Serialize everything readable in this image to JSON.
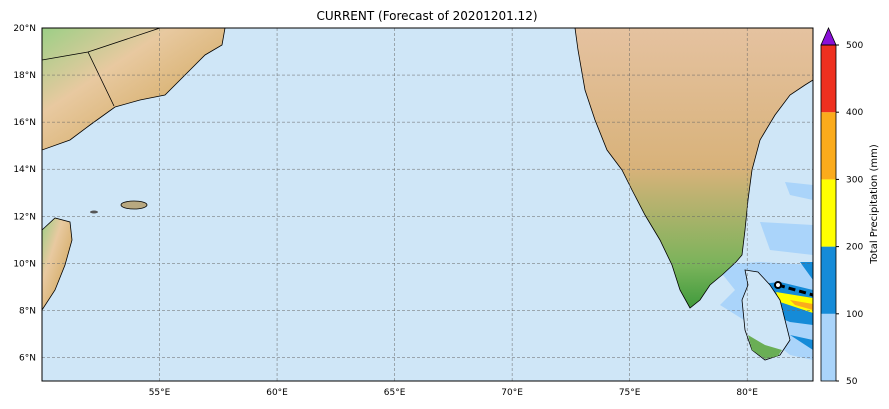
{
  "title": "CURRENT (Forecast of 20201201.12)",
  "map": {
    "extent": {
      "lon": [
        50,
        82.8
      ],
      "lat": [
        5,
        20
      ]
    },
    "ocean_color": "#cfe6f7",
    "lat_ticks": [
      {
        "value": 6,
        "label": "6°N"
      },
      {
        "value": 8,
        "label": "8°N"
      },
      {
        "value": 10,
        "label": "10°N"
      },
      {
        "value": 12,
        "label": "12°N"
      },
      {
        "value": 14,
        "label": "14°N"
      },
      {
        "value": 16,
        "label": "16°N"
      },
      {
        "value": 18,
        "label": "18°N"
      },
      {
        "value": 20,
        "label": "20°N"
      }
    ],
    "lon_ticks": [
      {
        "value": 55,
        "label": "55°E"
      },
      {
        "value": 60,
        "label": "60°E"
      },
      {
        "value": 65,
        "label": "65°E"
      },
      {
        "value": 70,
        "label": "70°E"
      },
      {
        "value": 75,
        "label": "75°E"
      },
      {
        "value": 80,
        "label": "80°E"
      }
    ],
    "grid": true
  },
  "colorbar": {
    "label": "Total Precipitation (mm)",
    "levels": [
      50,
      100,
      200,
      300,
      400,
      500
    ],
    "tick_labels": [
      "50",
      "100",
      "200",
      "300",
      "400",
      "500"
    ],
    "colors": [
      "#aad4fa",
      "#158bd8",
      "#ffff00",
      "#fbab1c",
      "#ee3020"
    ],
    "extend_color": "#8a10d8"
  }
}
